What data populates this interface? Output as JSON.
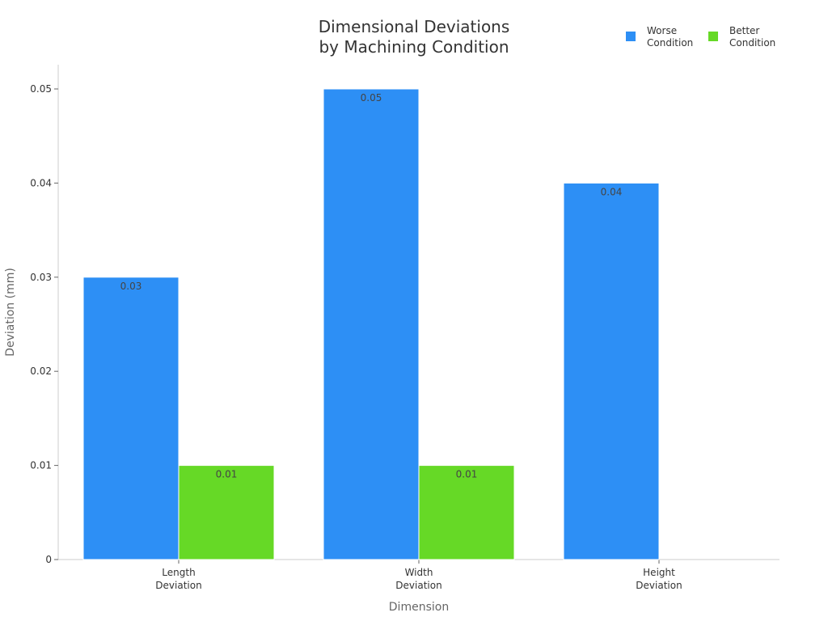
{
  "chart_data": {
    "type": "bar",
    "title": [
      "Dimensional Deviations",
      "by Machining Condition"
    ],
    "xlabel": "Dimension",
    "ylabel": "Deviation (mm)",
    "categories": [
      [
        "Length",
        "Deviation"
      ],
      [
        "Width",
        "Deviation"
      ],
      [
        "Height",
        "Deviation"
      ]
    ],
    "series": [
      {
        "name": [
          "Worse",
          "Condition"
        ],
        "color": "#2d8ff5",
        "values": [
          0.03,
          0.05,
          0.04
        ]
      },
      {
        "name": [
          "Better",
          "Condition"
        ],
        "color": "#66d926",
        "values": [
          0.01,
          0.01,
          null
        ]
      }
    ],
    "ylim": [
      0,
      0.05
    ],
    "yticks": [
      0,
      0.01,
      0.02,
      0.03,
      0.04,
      0.05
    ],
    "ytick_labels": [
      "0",
      "0.01",
      "0.02",
      "0.03",
      "0.04",
      "0.05"
    ],
    "data_labels": [
      [
        "0.03",
        "0.05",
        "0.04"
      ],
      [
        "0.01",
        "0.01",
        ""
      ]
    ],
    "grid": false,
    "legend_position": "top-right"
  }
}
